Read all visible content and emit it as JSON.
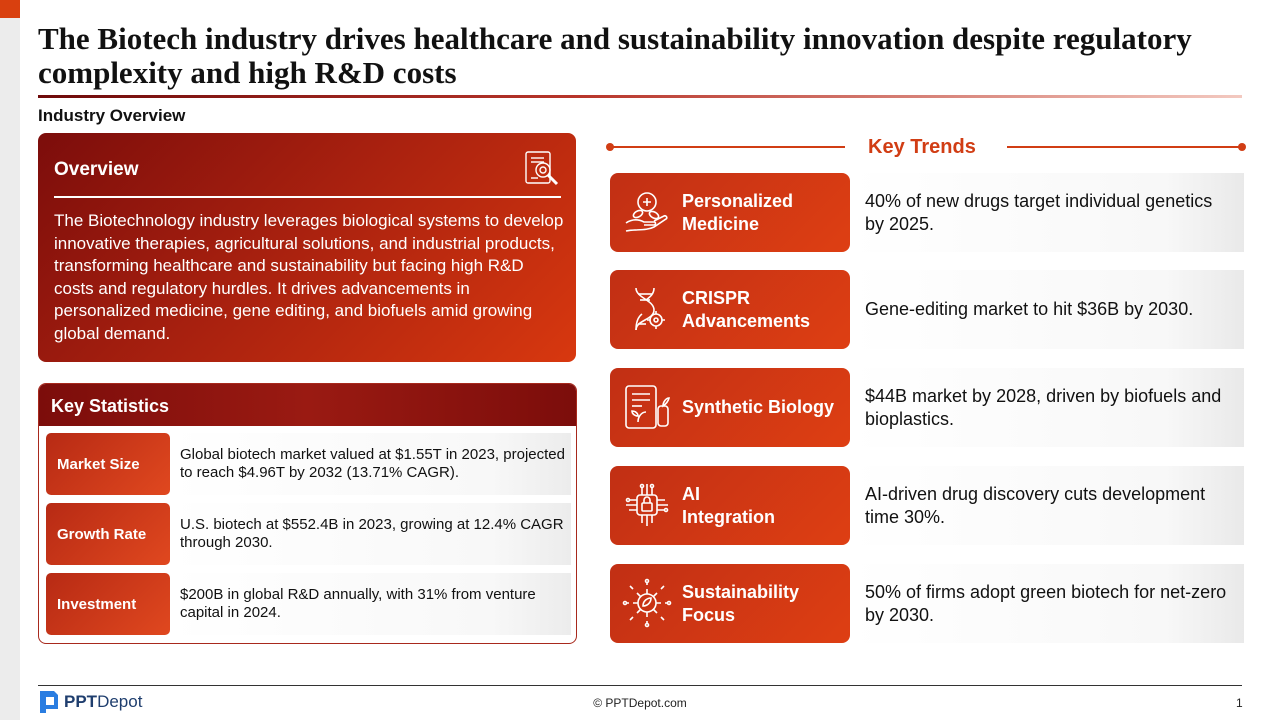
{
  "title": "The Biotech industry drives healthcare and sustainability innovation despite regulatory complexity and high R&D costs",
  "section_label": "Industry Overview",
  "overview": {
    "heading": "Overview",
    "icon": "document-search-icon",
    "body": "The Biotechnology industry leverages biological systems to develop innovative therapies, agricultural solutions, and industrial products, transforming healthcare and sustainability but facing high R&D costs and regulatory hurdles. It drives advancements in personalized medicine, gene editing, and biofuels amid growing global demand."
  },
  "key_statistics": {
    "heading": "Key Statistics",
    "rows": [
      {
        "label": "Market Size",
        "text": "Global biotech market valued at $1.55T in 2023, projected to reach $4.96T by 2032 (13.71% CAGR)."
      },
      {
        "label": "Growth Rate",
        "text": "U.S. biotech at $552.4B in 2023, growing at 12.4% CAGR through 2030."
      },
      {
        "label": "Investment",
        "text": "$200B in global R&D annually, with 31% from venture capital in 2024."
      }
    ]
  },
  "key_trends": {
    "heading": "Key Trends",
    "items": [
      {
        "title": "Personalized Medicine",
        "text": "40% of new drugs target individual genetics by 2025.",
        "icon": "hand-pills-icon"
      },
      {
        "title": "CRISPR Advancements",
        "text": "Gene-editing market to hit $36B by 2030.",
        "icon": "dna-gear-icon"
      },
      {
        "title": "Synthetic Biology",
        "text": "$44B market by 2028, driven by biofuels and bioplastics.",
        "icon": "tablet-plant-icon"
      },
      {
        "title": "AI Integration",
        "text": "AI-driven drug discovery cuts development time 30%.",
        "icon": "ai-chip-icon"
      },
      {
        "title": "Sustainability Focus",
        "text": "50% of firms adopt green biotech for net-zero by 2030.",
        "icon": "eco-gear-icon"
      }
    ]
  },
  "footer": {
    "logo_bold": "PPT",
    "logo_regular": "Depot",
    "copyright": "© PPTDepot.com",
    "page_number": "1"
  },
  "colors": {
    "accent": "#d13d14",
    "dark_red": "#7c0d0b",
    "brand_blue": "#1f3e6e"
  }
}
